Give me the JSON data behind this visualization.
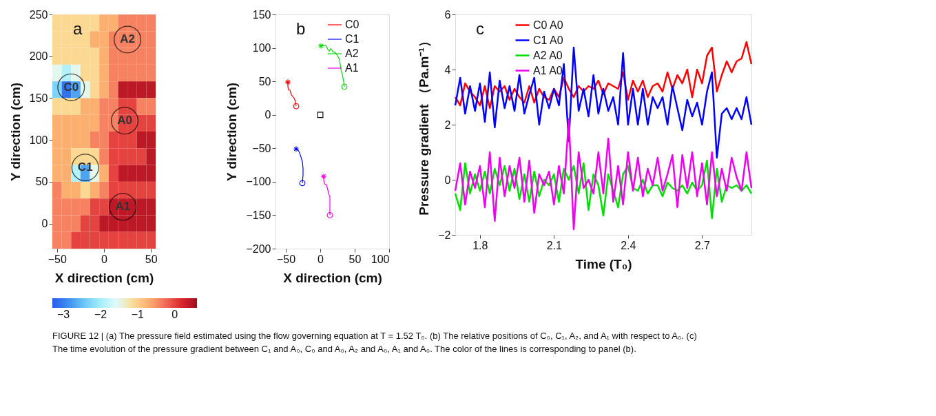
{
  "chart_data": [
    {
      "type": "heatmap",
      "xlabel": "X direction (cm)",
      "ylabel": "Y direction (cm)",
      "x": [
        -50,
        -40,
        -30,
        -20,
        -10,
        0,
        10,
        20,
        30,
        40,
        50
      ],
      "y": [
        240,
        220,
        200,
        180,
        160,
        140,
        120,
        100,
        80,
        60,
        40,
        20,
        0,
        -20
      ],
      "cells": [
        [
          -1.1,
          -1.1,
          -1.1,
          -1.1,
          -1.1,
          -0.7,
          -0.7,
          -0.4,
          -0.4,
          -0.4,
          -0.4
        ],
        [
          -1.1,
          -1.1,
          -1.1,
          -1.1,
          -0.7,
          -0.7,
          -0.4,
          -0.4,
          -0.4,
          -0.4,
          -0.4
        ],
        [
          -1.1,
          -1.1,
          -1.1,
          -1.1,
          -1.1,
          -0.7,
          -0.4,
          -0.4,
          -0.4,
          -0.4,
          -0.4
        ],
        [
          -1.5,
          -1.9,
          -1.5,
          -1.1,
          -1.1,
          -0.7,
          -0.4,
          -0.4,
          -0.4,
          -0.4,
          -0.4
        ],
        [
          -2.3,
          -3.1,
          -2.7,
          -1.5,
          -1.1,
          -0.7,
          -0.4,
          0.4,
          0.4,
          0.4,
          0.4
        ],
        [
          -1.1,
          -1.1,
          -1.1,
          -0.7,
          -0.7,
          -0.4,
          -0.4,
          0.0,
          0.0,
          -0.4,
          -0.4
        ],
        [
          -0.7,
          -0.7,
          -0.7,
          -0.7,
          -0.7,
          -0.4,
          -0.4,
          0.0,
          0.0,
          0.0,
          0.0
        ],
        [
          -0.7,
          -0.7,
          -0.7,
          -0.7,
          -0.4,
          -0.4,
          0.0,
          0.0,
          0.0,
          0.4,
          0.4
        ],
        [
          -0.7,
          -0.7,
          -1.1,
          -1.1,
          -1.1,
          -0.4,
          0.0,
          0.0,
          0.0,
          0.0,
          0.4
        ],
        [
          -0.7,
          -0.7,
          -1.9,
          -2.7,
          -1.5,
          -0.7,
          0.0,
          0.4,
          0.4,
          0.4,
          0.4
        ],
        [
          -0.4,
          -0.7,
          -0.7,
          -1.1,
          -0.7,
          -0.4,
          0.0,
          0.0,
          0.0,
          0.0,
          0.0
        ],
        [
          -0.4,
          -0.4,
          -0.4,
          -0.4,
          0.0,
          0.0,
          0.4,
          0.4,
          0.4,
          0.4,
          0.4
        ],
        [
          -0.4,
          -0.4,
          -0.4,
          0.0,
          0.0,
          0.4,
          0.4,
          0.4,
          0.4,
          0.4,
          0.4
        ],
        [
          -0.4,
          -0.4,
          0.0,
          0.0,
          0.0,
          0.0,
          0.0,
          0.0,
          0.0,
          0.0,
          0.0
        ]
      ],
      "colors": [
        "#2a5cf0",
        "#3d8ef0",
        "#6cc8f5",
        "#a6eefa",
        "#e0fcfc",
        "#fcdc96",
        "#fcb070",
        "#f56e5a",
        "#d9282e",
        "#a50a1e"
      ],
      "clim": [
        -3.3,
        0.6
      ],
      "cticks": [
        -3,
        -2,
        -1,
        0
      ],
      "xlim": [
        -55,
        55
      ],
      "xticks": [
        -50,
        0,
        50
      ],
      "ylim": [
        -30,
        250
      ],
      "yticks": [
        0,
        50,
        100,
        150,
        200,
        250
      ],
      "annotations": [
        "a",
        {
          "text": "A2",
          "x": 25,
          "y": 220
        },
        {
          "text": "C0",
          "x": -35,
          "y": 163
        },
        {
          "text": "A0",
          "x": 22,
          "y": 123
        },
        {
          "text": "C1",
          "x": -20,
          "y": 67
        },
        {
          "text": "A1",
          "x": 20,
          "y": 20
        },
        "FIGURE 12 | (a) The pressure field estimated using the flow governing equation at T = 1.52 T₀. (b) The relative positions of C₀, C₁, A₂, and A₁ with respect to A₀. (c) The time evolution of the pressure gradient between C₁ and A₀, C₀ and A₀, A₂ and A₀, A₁ and A₀. The color of the lines is corresponding to panel (b)."
      ]
    },
    {
      "type": "line",
      "xlabel": "X direction (cm)",
      "ylabel": "Y direction (cm)",
      "legend": "top right",
      "xlim": [
        -65,
        100
      ],
      "xticks": [
        -50,
        0,
        50,
        100
      ],
      "ylim": [
        -200,
        150
      ],
      "yticks": [
        -200,
        -150,
        -100,
        -50,
        0,
        50,
        100,
        150
      ],
      "series": [
        {
          "name": "C0",
          "color": "#ff0000",
          "x": [
            -47,
            -47,
            -46,
            -44,
            -42,
            -38,
            -36,
            -35
          ],
          "values": [
            49,
            42,
            37,
            37,
            30,
            25,
            20,
            13
          ]
        },
        {
          "name": "C1",
          "color": "#0000ff",
          "x": [
            -35,
            -32,
            -30,
            -28,
            -26,
            -25,
            -25,
            -26
          ],
          "values": [
            -51,
            -53,
            -57,
            -63,
            -70,
            -80,
            -90,
            -102
          ]
        },
        {
          "name": "A2",
          "color": "#00dd00",
          "x": [
            1,
            4,
            8,
            11,
            13,
            15,
            19,
            22,
            25,
            28,
            29,
            30,
            32,
            34,
            35
          ],
          "values": [
            103,
            104,
            104,
            98,
            95,
            99,
            94,
            93,
            88,
            83,
            75,
            68,
            60,
            50,
            42
          ]
        },
        {
          "name": "A1",
          "color": "#ee00ee",
          "x": [
            5,
            5,
            6,
            9,
            11,
            12,
            14,
            14,
            14
          ],
          "values": [
            -92,
            -97,
            -103,
            -105,
            -112,
            -118,
            -122,
            -135,
            -150
          ]
        },
        {
          "type": "scatter",
          "marker": "cross",
          "colors": [
            "#ff0000",
            "#0000ff",
            "#00dd00",
            "#ee00ee"
          ],
          "x": [
            -47,
            -35,
            1,
            5
          ],
          "values": [
            49,
            -51,
            103,
            -92
          ]
        },
        {
          "type": "scatter",
          "marker": "circle",
          "colors": [
            "#ff0000",
            "#0000ff",
            "#00dd00",
            "#ee00ee"
          ],
          "x": [
            -35,
            -26,
            35,
            14
          ],
          "values": [
            13,
            -102,
            42,
            -150
          ]
        },
        {
          "type": "scatter",
          "marker": "square",
          "color": "#000000",
          "x": [
            0
          ],
          "values": [
            0
          ]
        }
      ],
      "annotations": [
        "b"
      ]
    },
    {
      "type": "line",
      "xlabel": "Time (T₀)",
      "ylabel": "Pressure gradient （Pa.m⁻¹）",
      "legend": "top left",
      "xlim": [
        1.7,
        2.9
      ],
      "xticks": [
        1.8,
        2.1,
        2.4,
        2.7
      ],
      "ylim": [
        -2,
        6
      ],
      "yticks": [
        -2,
        0,
        2,
        4,
        6
      ],
      "x": [
        1.7,
        1.72,
        1.74,
        1.76,
        1.78,
        1.8,
        1.82,
        1.84,
        1.86,
        1.88,
        1.9,
        1.92,
        1.94,
        1.96,
        1.98,
        2.0,
        2.02,
        2.04,
        2.06,
        2.08,
        2.1,
        2.12,
        2.14,
        2.16,
        2.18,
        2.2,
        2.22,
        2.24,
        2.26,
        2.28,
        2.3,
        2.32,
        2.34,
        2.36,
        2.38,
        2.4,
        2.42,
        2.44,
        2.46,
        2.48,
        2.5,
        2.52,
        2.54,
        2.56,
        2.58,
        2.6,
        2.62,
        2.64,
        2.66,
        2.68,
        2.7,
        2.72,
        2.74,
        2.76,
        2.78,
        2.8,
        2.82,
        2.84,
        2.86,
        2.88,
        2.9
      ],
      "series": [
        {
          "name": "C0 A0",
          "color": "#ff0000",
          "values": [
            3.0,
            2.7,
            3.5,
            3.2,
            3.0,
            2.7,
            3.4,
            2.6,
            3.4,
            3.2,
            3.4,
            2.9,
            3.3,
            3.0,
            2.8,
            3.4,
            2.8,
            3.3,
            3.0,
            2.9,
            3.3,
            3.0,
            3.7,
            3.3,
            3.0,
            3.4,
            3.2,
            3.4,
            3.3,
            3.6,
            3.1,
            3.5,
            3.4,
            3.3,
            3.9,
            2.9,
            3.6,
            3.2,
            3.6,
            3.0,
            3.4,
            3.5,
            3.2,
            3.9,
            3.3,
            3.8,
            3.5,
            4.0,
            3.0,
            4.0,
            3.5,
            4.5,
            4.8,
            3.2,
            3.8,
            4.3,
            3.9,
            4.3,
            4.4,
            5.0,
            4.2
          ]
        },
        {
          "name": "C1 A0",
          "color": "#0000ff",
          "values": [
            2.7,
            3.7,
            2.4,
            3.4,
            2.5,
            3.5,
            2.1,
            3.9,
            1.9,
            3.6,
            2.6,
            3.4,
            2.5,
            3.8,
            2.4,
            3.1,
            3.7,
            2.0,
            3.2,
            2.6,
            3.3,
            2.7,
            4.2,
            1.4,
            4.8,
            2.5,
            3.3,
            2.3,
            3.8,
            2.4,
            3.3,
            2.5,
            3.0,
            2.0,
            4.6,
            2.0,
            3.3,
            2.0,
            3.3,
            2.0,
            3.0,
            2.6,
            3.0,
            2.0,
            3.4,
            2.6,
            1.8,
            2.9,
            2.3,
            2.8,
            2.0,
            3.2,
            3.9,
            0.8,
            2.4,
            2.6,
            2.2,
            2.6,
            2.2,
            3.0,
            2.0
          ]
        },
        {
          "name": "A2 A0",
          "color": "#00dd00",
          "values": [
            -0.5,
            -1.1,
            0.6,
            -0.5,
            0.2,
            -0.4,
            0.3,
            -0.5,
            0.4,
            -0.2,
            0.5,
            -0.4,
            0.4,
            -0.7,
            0.2,
            -0.8,
            0.3,
            -0.6,
            0.0,
            -0.2,
            0.2,
            -0.8,
            0.4,
            0.0,
            0.5,
            -0.5,
            0.6,
            -1.1,
            0.2,
            -0.2,
            -1.3,
            0.2,
            -0.4,
            -1.0,
            0.2,
            0.5,
            -0.3,
            -0.4,
            0.0,
            -0.5,
            -0.2,
            -0.2,
            -0.6,
            -0.1,
            -0.3,
            -0.4,
            -0.2,
            -0.5,
            -0.1,
            -0.4,
            -0.2,
            0.7,
            -1.4,
            0.4,
            -0.8,
            -0.2,
            -0.3,
            -0.2,
            -0.4,
            -0.2,
            -0.5
          ]
        },
        {
          "name": "A1 A0",
          "color": "#ee00ee",
          "values": [
            -0.4,
            0.6,
            -0.9,
            0.3,
            -0.3,
            0.5,
            -1.0,
            1.0,
            -1.5,
            0.8,
            -0.6,
            0.5,
            -0.3,
            0.8,
            -0.8,
            0.7,
            -1.2,
            0.2,
            -0.2,
            0.3,
            -0.9,
            0.5,
            -0.5,
            2.2,
            -1.8,
            1.0,
            -0.3,
            0.0,
            -0.5,
            1.0,
            -0.5,
            1.5,
            -0.8,
            0.5,
            -0.9,
            1.0,
            -0.4,
            0.8,
            -0.6,
            0.4,
            -0.2,
            0.8,
            -0.4,
            0.2,
            0.9,
            -1.0,
            0.9,
            -0.3,
            1.0,
            -0.6,
            0.6,
            -0.9,
            1.0,
            -0.6,
            0.4,
            -0.4,
            0.8,
            0.1,
            -0.4,
            1.0,
            -0.3
          ]
        }
      ],
      "annotations": [
        "c"
      ]
    }
  ]
}
